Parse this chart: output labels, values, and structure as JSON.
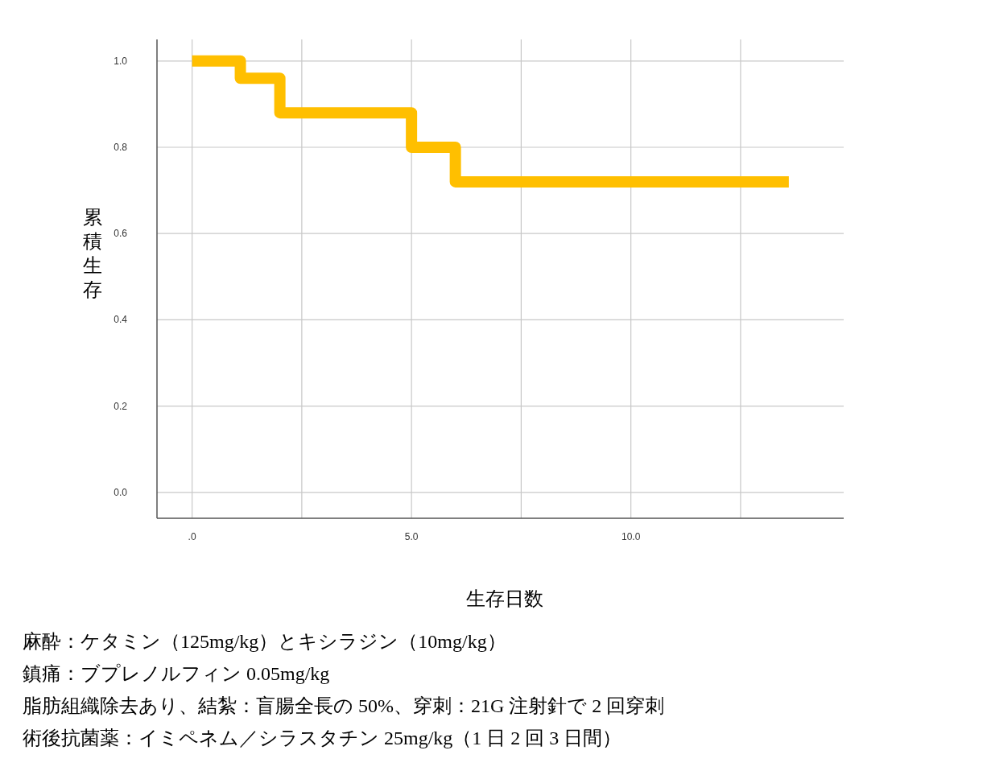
{
  "chart_data": {
    "type": "step",
    "xlabel": "生存日数",
    "ylabel": "累積生存",
    "x": [
      0,
      1.1,
      2.0,
      5.0,
      6.0,
      13.6
    ],
    "series": [
      {
        "color": "#ffbf00",
        "values": [
          1.0,
          0.96,
          0.88,
          0.8,
          0.72,
          0.72
        ]
      }
    ],
    "xlim": [
      -0.8,
      14.85
    ],
    "xticks": [
      {
        "value": 0,
        "label": ".0"
      },
      {
        "value": 2.5,
        "label": null
      },
      {
        "value": 5,
        "label": "5.0"
      },
      {
        "value": 7.5,
        "label": null
      },
      {
        "value": 10,
        "label": "10.0"
      },
      {
        "value": 12.5,
        "label": null
      }
    ],
    "ylim": [
      -0.06,
      1.05
    ],
    "yticks": [
      {
        "value": 0,
        "label": "0.0"
      },
      {
        "value": 0.2,
        "label": "0.2"
      },
      {
        "value": 0.4,
        "label": "0.4"
      },
      {
        "value": 0.6,
        "label": "0.6"
      },
      {
        "value": 0.8,
        "label": "0.8"
      },
      {
        "value": 1,
        "label": "1.0"
      }
    ],
    "grid": true,
    "annotations": [
      "麻酔：ケタミン（125mg/kg）とキシラジン（10mg/kg）",
      "鎮痛：ブプレノルフィン 0.05mg/kg",
      "脂肪組織除去あり、結紮：盲腸全長の 50%、穿刺：21G 注射針で 2 回穿刺",
      "術後抗菌薬：イミペネム／シラスタチン 25mg/kg（1 日 2 回 3 日間）"
    ]
  }
}
